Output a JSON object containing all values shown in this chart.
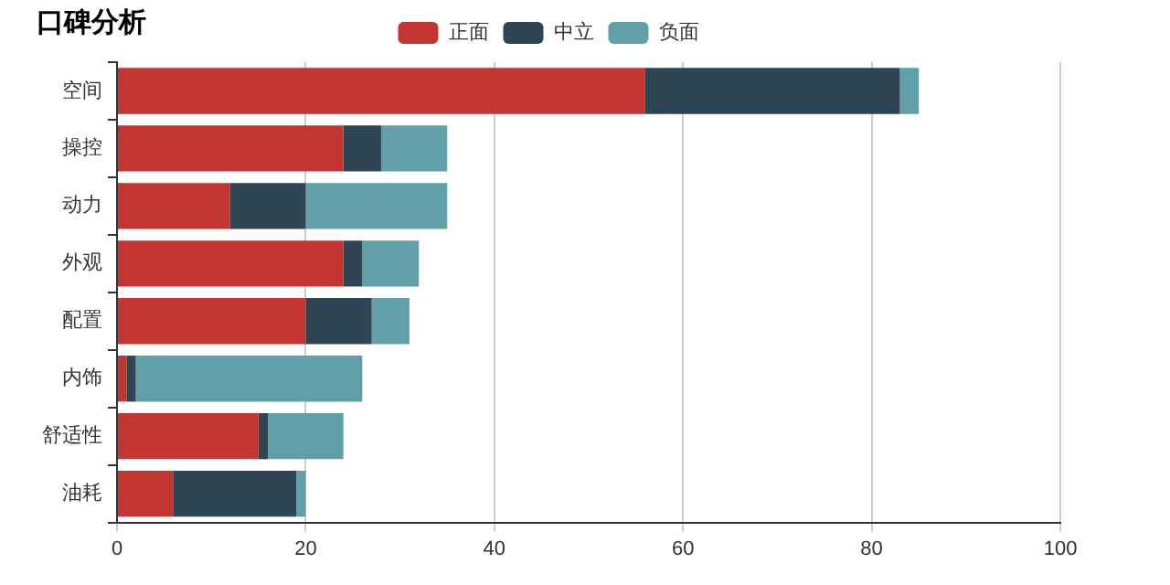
{
  "chart_data": {
    "type": "bar",
    "orientation": "horizontal",
    "stacked": true,
    "title": "口碑分析",
    "categories": [
      "空间",
      "操控",
      "动力",
      "外观",
      "配置",
      "内饰",
      "舒适性",
      "油耗"
    ],
    "series": [
      {
        "name": "正面",
        "color": "#c23531",
        "values": [
          56,
          24,
          12,
          24,
          20,
          1,
          15,
          6
        ]
      },
      {
        "name": "中立",
        "color": "#2f4554",
        "values": [
          27,
          4,
          8,
          2,
          7,
          1,
          1,
          13
        ]
      },
      {
        "name": "负面",
        "color": "#61a0a8",
        "values": [
          2,
          7,
          15,
          6,
          4,
          24,
          8,
          1
        ]
      }
    ],
    "xlim": [
      0,
      100
    ],
    "xticks": [
      0,
      20,
      40,
      60,
      80,
      100
    ],
    "grid": "x",
    "legend": "top"
  }
}
